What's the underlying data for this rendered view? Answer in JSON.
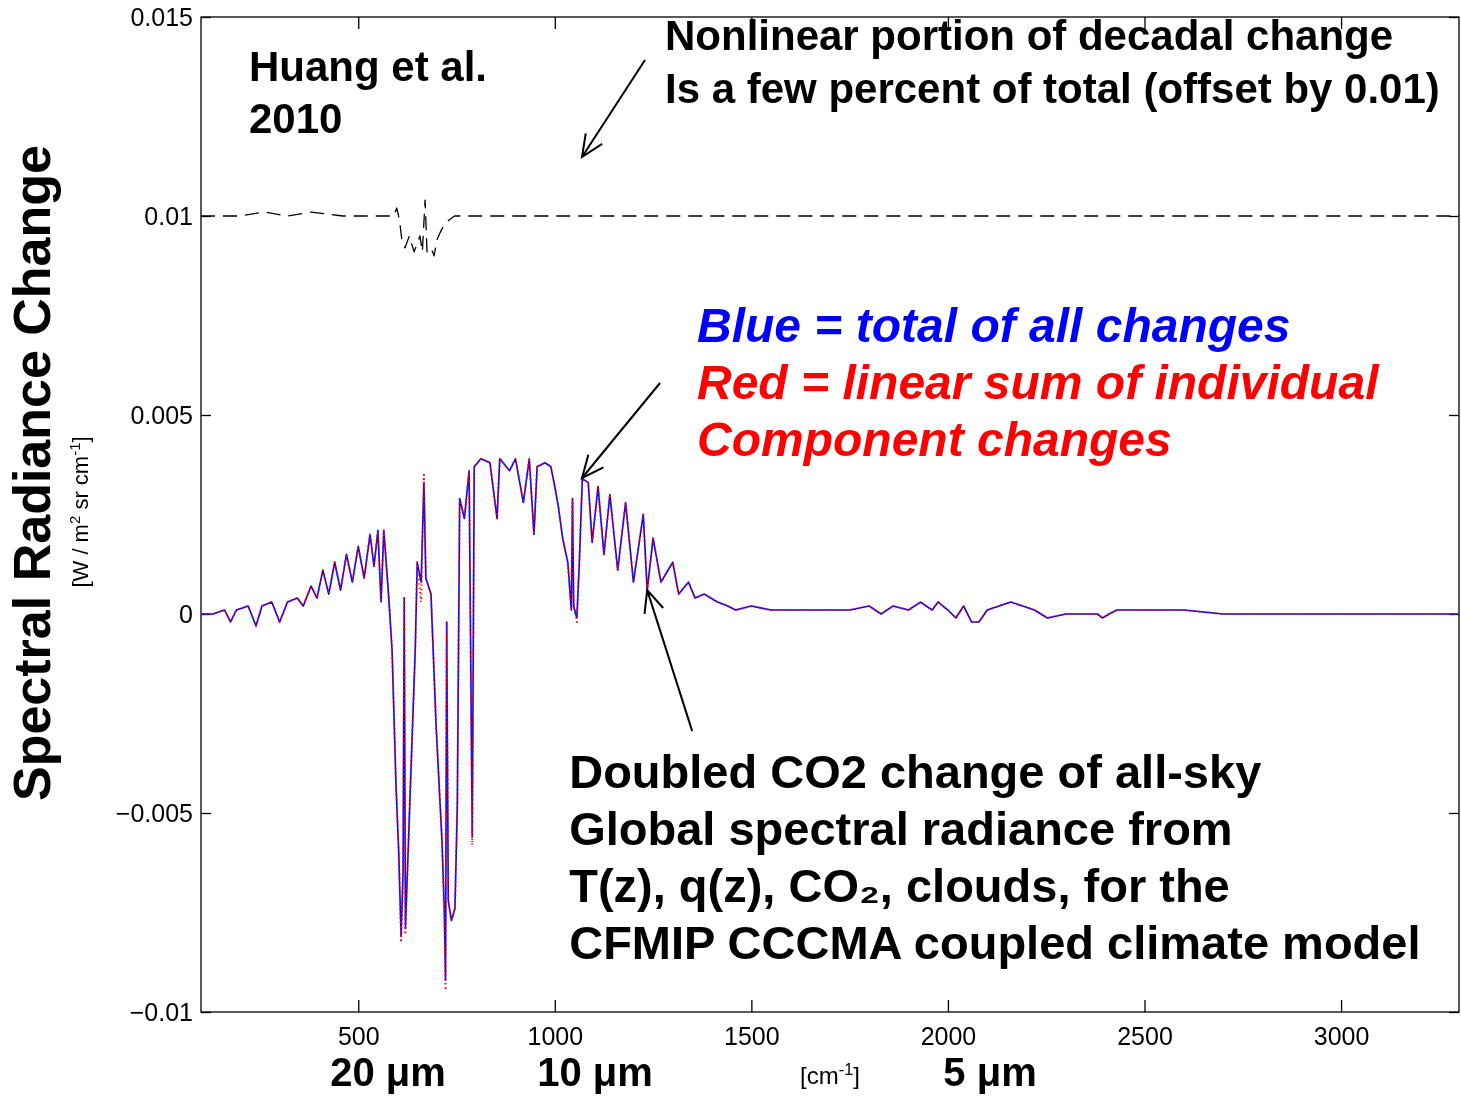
{
  "chart_data": {
    "type": "line",
    "xlabel": "[cm$^{-1}$]",
    "ylabel": "Spectral Radiance Change",
    "annotations": [
      "Huang et al.\n2010",
      "Nonlinear portion of decadal change\nIs a few percent of total (offset by 0.01)",
      {
        "text": "Doubled CO2 change of all-sky\nGlobal spectral radiance from\nT(z), q(z), CO₂, clouds, for the\nCFMIP CCCMA coupled climate model",
        "x": 1235,
        "y": 0.0006
      },
      "[W / m$^{2}$ sr cm$^{-1}$]",
      "20 μm",
      "10 μm",
      "5 μm"
    ],
    "xlim": [
      100,
      3300
    ],
    "xticks": [
      500,
      1000,
      1500,
      2000,
      2500,
      3000
    ],
    "ylim": [
      -0.01,
      0.015
    ],
    "yticks": [
      -0.01,
      -0.005,
      0,
      0.005,
      0.01,
      0.015
    ],
    "legend": "right",
    "series": [
      {
        "name": "Blue = total of all changes",
        "color": "#0000ff",
        "line_style": "solid",
        "x": [
          100,
          130,
          160,
          175,
          190,
          220,
          240,
          255,
          280,
          300,
          320,
          345,
          360,
          380,
          395,
          410,
          425,
          440,
          455,
          470,
          485,
          500,
          515,
          530,
          540,
          550,
          558,
          565,
          577,
          586,
          596,
          603,
          609,
          614,
          617,
          620,
          631,
          645,
          650,
          660,
          667,
          672,
          685,
          698,
          713,
          719,
          722,
          725,
          729,
          737,
          746,
          752,
          758,
          770,
          782,
          790,
          795,
          812,
          835,
          853,
          860,
          885,
          900,
          920,
          935,
          947,
          955,
          975,
          990,
          1000,
          1009,
          1020,
          1033,
          1042,
          1045,
          1048,
          1056,
          1062,
          1070,
          1085,
          1095,
          1110,
          1125,
          1140,
          1160,
          1180,
          1200,
          1225,
          1235,
          1250,
          1270,
          1300,
          1315,
          1340,
          1357,
          1380,
          1414,
          1440,
          1460,
          1500,
          1550,
          1600,
          1650,
          1700,
          1750,
          1800,
          1830,
          1860,
          1900,
          1930,
          1960,
          1975,
          2000,
          2020,
          2040,
          2060,
          2079,
          2100,
          2130,
          2160,
          2190,
          2220,
          2253,
          2300,
          2380,
          2393,
          2410,
          2430,
          2500,
          2600,
          2700,
          2800,
          3000,
          3300
        ],
        "values": [
          0,
          0,
          0.0001,
          -0.0002,
          0.0001,
          0.0002,
          -0.0003,
          0.0002,
          0.0003,
          -0.0002,
          0.0003,
          0.0004,
          0.0002,
          0.0007,
          0.0004,
          0.0011,
          0.0005,
          0.0013,
          0.0006,
          0.0015,
          0.0008,
          0.0017,
          0.0009,
          0.002,
          0.0012,
          0.0021,
          0.0003,
          0.0021,
          0.0005,
          -0.0009,
          -0.0043,
          -0.006,
          -0.0081,
          -0.0065,
          0.0004,
          -0.0079,
          -0.0048,
          -0.0009,
          0.0013,
          0.0008,
          0.0033,
          0.0009,
          0.0005,
          -0.0028,
          -0.0057,
          -0.0075,
          -0.0092,
          -0.0002,
          -0.0072,
          -0.0077,
          -0.0074,
          -0.0048,
          0.0029,
          0.0024,
          0.0036,
          -0.0056,
          0.0037,
          0.0039,
          0.0038,
          0.0024,
          0.0039,
          0.0036,
          0.0039,
          0.0028,
          0.0039,
          0.002,
          0.0037,
          0.0038,
          0.0037,
          0.0032,
          0.0027,
          0.0019,
          0.0013,
          0.0001,
          0.0029,
          0.0002,
          -0.0001,
          0.0012,
          0.0034,
          0.0033,
          0.0018,
          0.0032,
          0.0015,
          0.003,
          0.0011,
          0.0028,
          0.0008,
          0.0025,
          0.0006,
          0.0019,
          0.0008,
          0.0013,
          0.0005,
          0.0008,
          0.0004,
          0.0005,
          0.0003,
          0.0002,
          0.0001,
          0.0002,
          0.0001,
          0.0001,
          0.0001,
          0.0001,
          0.0001,
          0.0002,
          0,
          0.0002,
          0.0001,
          0.0003,
          0.0001,
          0.0003,
          0.0001,
          -0.0001,
          0.0002,
          -0.0002,
          -0.0002,
          0.0001,
          0.0002,
          0.0003,
          0.0002,
          0.0001,
          -0.0001,
          0,
          0,
          -0.0001,
          0,
          0.0001,
          0.0001,
          0.0001,
          0,
          0,
          0,
          0
        ]
      },
      {
        "name": "Red = linear sum of individual\nComponent changes",
        "color": "#ff0000",
        "line_style": "dotted",
        "x": [
          100,
          130,
          160,
          175,
          190,
          220,
          240,
          255,
          280,
          300,
          320,
          345,
          360,
          380,
          395,
          410,
          425,
          440,
          455,
          470,
          485,
          500,
          515,
          530,
          540,
          550,
          558,
          565,
          577,
          586,
          596,
          603,
          609,
          614,
          617,
          620,
          631,
          645,
          650,
          660,
          667,
          672,
          685,
          698,
          713,
          719,
          722,
          725,
          729,
          737,
          746,
          752,
          758,
          770,
          782,
          790,
          795,
          812,
          835,
          853,
          860,
          885,
          900,
          920,
          935,
          947,
          955,
          975,
          990,
          1000,
          1009,
          1020,
          1033,
          1042,
          1045,
          1048,
          1056,
          1062,
          1070,
          1085,
          1095,
          1110,
          1125,
          1140,
          1160,
          1180,
          1200,
          1225,
          1235,
          1250,
          1270,
          1300,
          1315,
          1340,
          1357,
          1380,
          1414,
          1440,
          1460,
          1500,
          1550,
          1600,
          1650,
          1700,
          1750,
          1800,
          1830,
          1860,
          1900,
          1930,
          1960,
          1975,
          2000,
          2020,
          2040,
          2060,
          2079,
          2100,
          2130,
          2160,
          2190,
          2220,
          2253,
          2300,
          2380,
          2393,
          2410,
          2430,
          2500,
          2600,
          2700,
          2800,
          3000,
          3300
        ],
        "values": [
          0,
          0,
          0.0001,
          -0.0002,
          0.0001,
          0.0002,
          -0.0003,
          0.0002,
          0.0003,
          -0.0002,
          0.0003,
          0.0004,
          0.0002,
          0.0007,
          0.0004,
          0.0011,
          0.0005,
          0.0013,
          0.0006,
          0.0015,
          0.0008,
          0.0017,
          0.0009,
          0.002,
          0.0012,
          0.0021,
          0.0003,
          0.0021,
          0.0005,
          -0.0009,
          -0.0043,
          -0.006,
          -0.0082,
          -0.0065,
          0.0004,
          -0.008,
          -0.0048,
          -0.0009,
          0.0013,
          0.0003,
          0.0035,
          0.0009,
          0.0005,
          -0.0028,
          -0.0057,
          -0.0075,
          -0.0094,
          -0.0002,
          -0.0072,
          -0.0077,
          -0.0074,
          -0.0048,
          0.0029,
          0.0024,
          0.0036,
          -0.0058,
          0.0037,
          0.0039,
          0.0038,
          0.0024,
          0.0039,
          0.0036,
          0.0039,
          0.0028,
          0.0039,
          0.002,
          0.0037,
          0.0038,
          0.0037,
          0.0032,
          0.0027,
          0.0019,
          0.0013,
          0.0001,
          0.0029,
          0.0002,
          -0.0002,
          0.0012,
          0.0034,
          0.0033,
          0.0018,
          0.0032,
          0.0015,
          0.003,
          0.0011,
          0.0028,
          0.0008,
          0.0025,
          0.0006,
          0.0019,
          0.0008,
          0.0013,
          0.0005,
          0.0008,
          0.0004,
          0.0005,
          0.0003,
          0.0002,
          0.0001,
          0.0002,
          0.0001,
          0.0001,
          0.0001,
          0.0001,
          0.0001,
          0.0002,
          0,
          0.0002,
          0.0001,
          0.0003,
          0.0001,
          0.0003,
          0.0001,
          -0.0001,
          0.0002,
          -0.0002,
          -0.0002,
          0.0001,
          0.0002,
          0.0003,
          0.0002,
          0.0001,
          -0.0001,
          0,
          0,
          -0.0001,
          0,
          0.0001,
          0.0001,
          0.0001,
          0,
          0,
          0,
          0
        ]
      },
      {
        "color": "#000000",
        "line_style": "dashed",
        "x": [
          100,
          200,
          260,
          320,
          380,
          460,
          540,
          590,
          598,
          605,
          612,
          619,
          630,
          642,
          650,
          657,
          663,
          670,
          675,
          685,
          693,
          700,
          709,
          720,
          731,
          745,
          800,
          900,
          1000,
          1200,
          1500,
          2000,
          2500,
          3300
        ],
        "values": [
          0.01,
          0.01,
          0.0101,
          0.01,
          0.0101,
          0.01,
          0.01,
          0.01,
          0.0102,
          0.0099,
          0.0093,
          0.0092,
          0.0095,
          0.0091,
          0.0093,
          0.0095,
          0.0091,
          0.0104,
          0.0091,
          0.0092,
          0.009,
          0.0094,
          0.0096,
          0.0098,
          0.0099,
          0.01,
          0.01,
          0.01,
          0.01,
          0.01,
          0.01,
          0.01,
          0.01,
          0.01
        ]
      }
    ]
  }
}
